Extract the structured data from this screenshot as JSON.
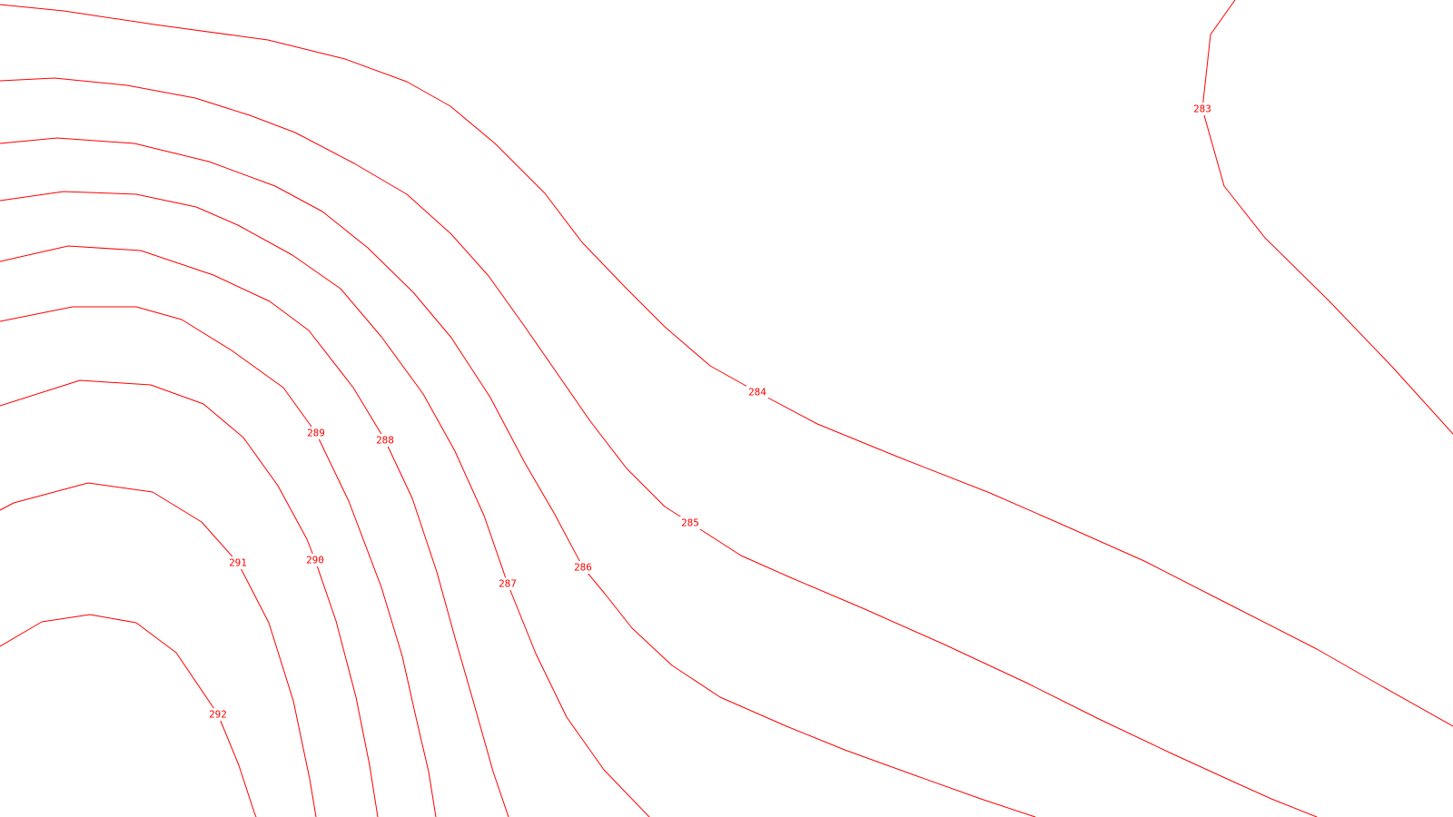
{
  "map": {
    "line_color": "#ff0000",
    "background": "#ffffff",
    "contours": [
      {
        "value": 283,
        "label": "283"
      },
      {
        "value": 284,
        "label": "284"
      },
      {
        "value": 285,
        "label": "285"
      },
      {
        "value": 286,
        "label": "286"
      },
      {
        "value": 287,
        "label": "287"
      },
      {
        "value": 288,
        "label": "288"
      },
      {
        "value": 289,
        "label": "289"
      },
      {
        "value": 290,
        "label": "290"
      },
      {
        "value": 291,
        "label": "291"
      },
      {
        "value": 292,
        "label": "292"
      }
    ]
  }
}
